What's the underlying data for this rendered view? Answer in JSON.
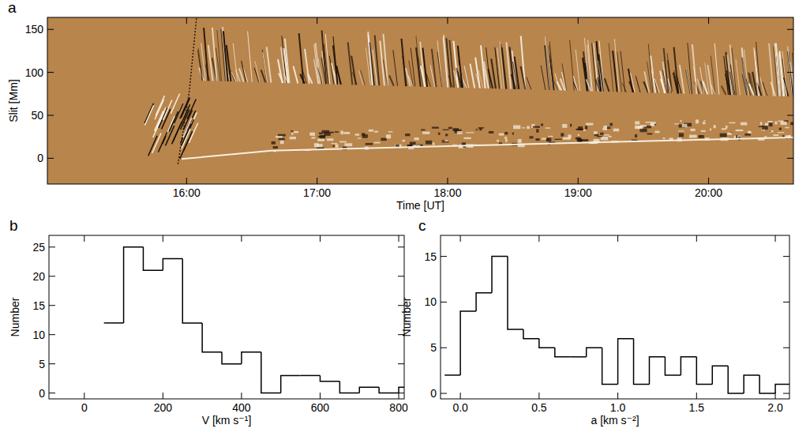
{
  "chart_data": [
    {
      "type": "image",
      "panel_label": "a",
      "x_label": "Time [UT]",
      "y_label": "Slit [Mm]",
      "color": "#b8854c",
      "xlim": [
        896,
        1239
      ],
      "xticks": [
        {
          "value": 960,
          "label": "16:00"
        },
        {
          "value": 1020,
          "label": "17:00"
        },
        {
          "value": 1080,
          "label": "18:00"
        },
        {
          "value": 1140,
          "label": "19:00"
        },
        {
          "value": 1200,
          "label": "20:00"
        }
      ],
      "ylim": [
        -30,
        164
      ],
      "yticks": [
        0,
        50,
        100,
        150
      ]
    },
    {
      "type": "histogram",
      "panel_label": "b",
      "x_label": "V [km s⁻¹]",
      "y_label": "Number",
      "color": "#000000",
      "bins": [
        50,
        100,
        150,
        200,
        250,
        300,
        350,
        400,
        450,
        500,
        550,
        600,
        650,
        700,
        750,
        800,
        850
      ],
      "values": [
        12,
        25,
        21,
        23,
        12,
        7,
        5,
        7,
        0,
        3,
        3,
        2,
        0,
        1,
        0,
        1
      ],
      "xlim": [
        -90,
        814
      ],
      "xticks": [
        0,
        200,
        400,
        600,
        800
      ],
      "ylim": [
        -1,
        27
      ],
      "yticks": [
        0,
        5,
        10,
        15,
        20,
        25
      ]
    },
    {
      "type": "histogram",
      "panel_label": "c",
      "x_label": "a [km s⁻²]",
      "y_label": "Number",
      "color": "#000000",
      "bins": [
        -0.1,
        0,
        0.1,
        0.2,
        0.3,
        0.4,
        0.5,
        0.6,
        0.7,
        0.8,
        0.9,
        1.0,
        1.1,
        1.2,
        1.3,
        1.4,
        1.5,
        1.6,
        1.7,
        1.8,
        1.9,
        2.0,
        2.1
      ],
      "values": [
        2,
        9,
        11,
        15,
        7,
        6,
        5,
        4,
        4,
        5,
        1,
        6,
        1,
        4,
        2,
        4,
        1,
        3,
        0,
        2,
        0,
        1
      ],
      "xlim": [
        -0.126,
        2.09
      ],
      "xticks": [
        {
          "value": 0,
          "label": "0.0"
        },
        {
          "value": 0.5,
          "label": "0.5"
        },
        {
          "value": 1,
          "label": "1.0"
        },
        {
          "value": 1.5,
          "label": "1.5"
        },
        {
          "value": 2,
          "label": "2.0"
        }
      ],
      "ylim": [
        -0.6,
        17.3
      ],
      "yticks": [
        0,
        5,
        10,
        15
      ]
    }
  ]
}
